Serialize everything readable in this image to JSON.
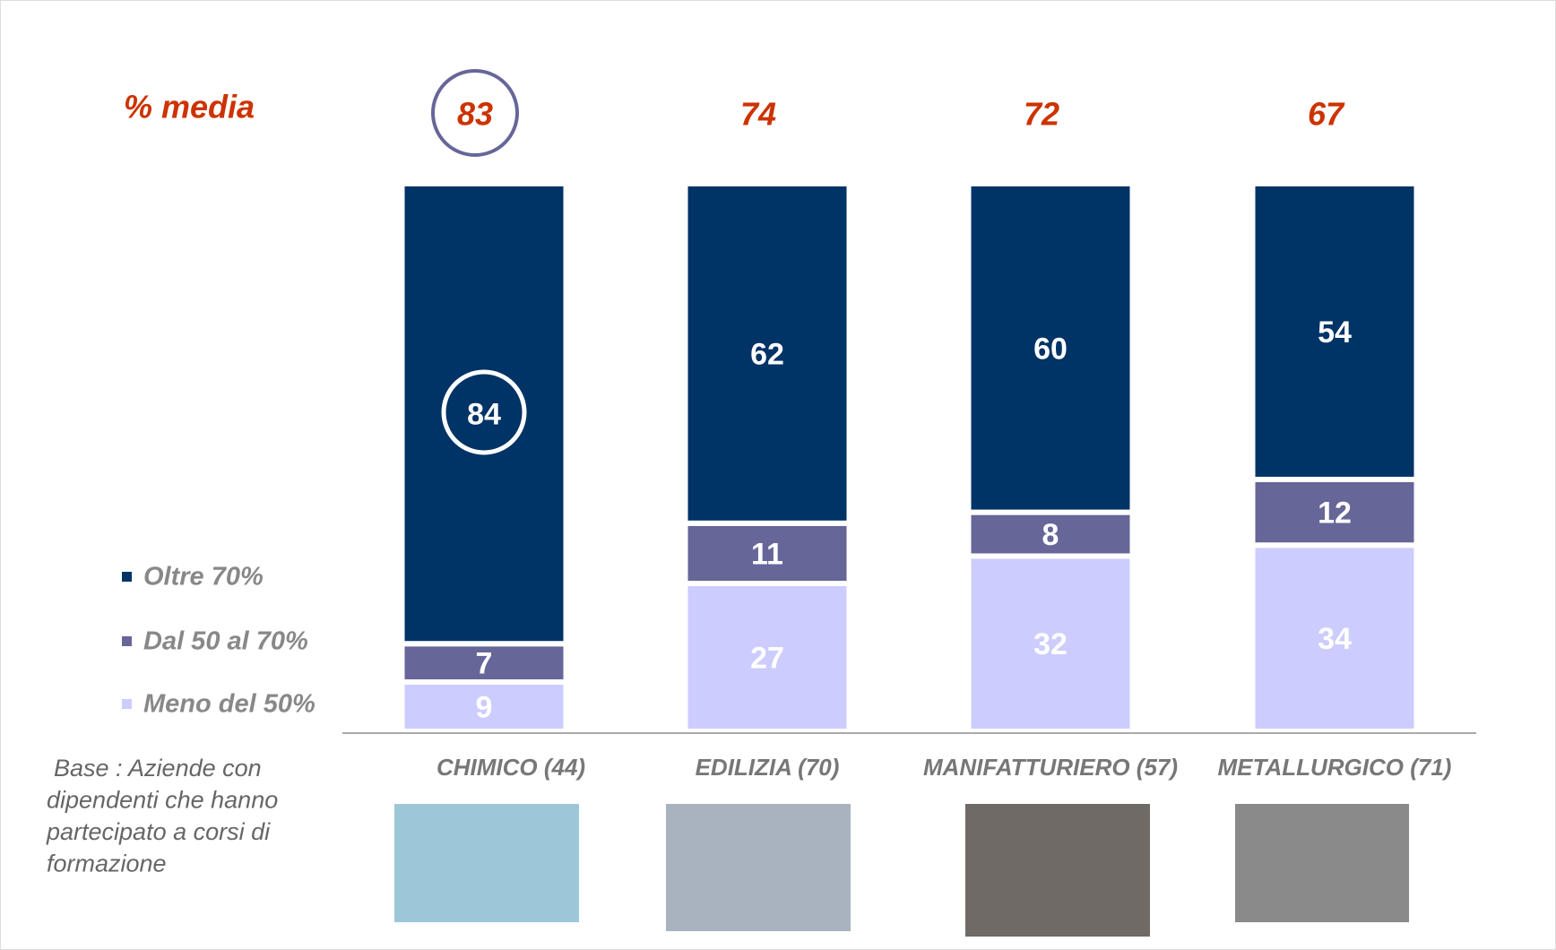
{
  "chart_data": {
    "type": "stacked_bar",
    "mean_label": "% media",
    "mean_values": [
      83,
      74,
      72,
      67
    ],
    "categories": [
      "CHIMICO (44)",
      "EDILIZIA (70)",
      "MANIFATTURIERO (57)",
      "METALLURGICO (71)"
    ],
    "series": [
      {
        "name": "Meno del 50%",
        "color": "#ccccff",
        "values": [
          9,
          27,
          32,
          34
        ]
      },
      {
        "name": "Dal 50 al 70%",
        "color": "#666699",
        "values": [
          7,
          11,
          8,
          12
        ]
      },
      {
        "name": "Oltre 70%",
        "color": "#003366",
        "values": [
          84,
          62,
          60,
          54
        ]
      }
    ],
    "ylim": [
      0,
      100
    ],
    "note": [
      "Base : Aziende con",
      "dipendenti che hanno",
      "partecipato a corsi di",
      "formazione"
    ]
  }
}
